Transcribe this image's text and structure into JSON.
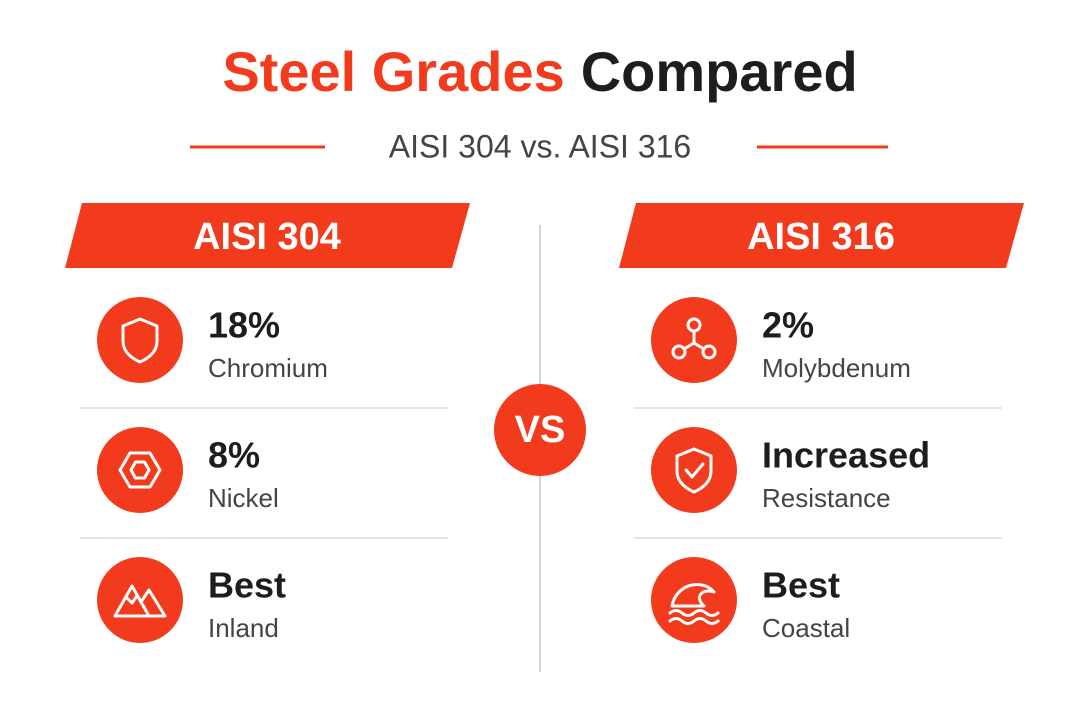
{
  "header": {
    "title_accent": "Steel Grades",
    "title_rest": "Compared",
    "subtitle": "AISI 304 vs. AISI 316"
  },
  "vs_badge": "VS",
  "columns": [
    {
      "heading": "AISI 304",
      "items": [
        {
          "value": "18%",
          "label": "Chromium"
        },
        {
          "value": "8%",
          "label": "Nickel"
        },
        {
          "value": "Best",
          "label": "Inland"
        }
      ]
    },
    {
      "heading": "AISI 316",
      "items": [
        {
          "value": "2%",
          "label": "Molybdenum"
        },
        {
          "value": "Increased",
          "label": "Resistance"
        },
        {
          "value": "Best",
          "label": "Coastal"
        }
      ]
    }
  ]
}
